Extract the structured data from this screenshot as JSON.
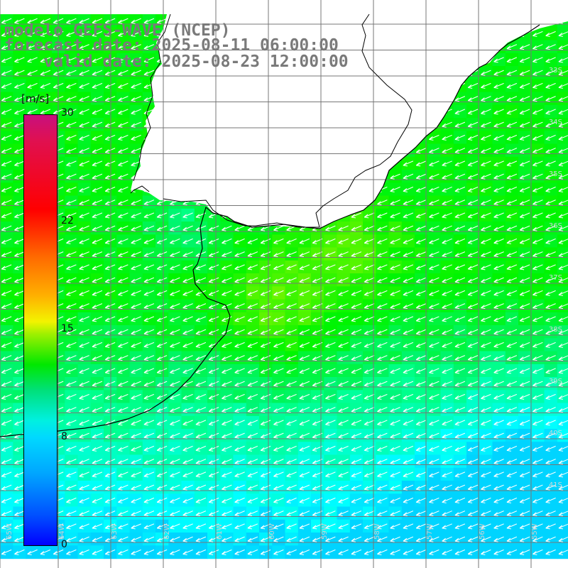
{
  "header": {
    "line1": "modelo GEFS-WAVE (NCEP)",
    "line2": "forecast date: 2025-08-11 06:00:00",
    "line3": "    valid date: 2025-08-23 12:00:00"
  },
  "colorbar": {
    "unit": "[m/s]",
    "ticks": [
      "30",
      "22",
      "15",
      "8",
      "0"
    ],
    "min": 0,
    "max": 30
  },
  "colors": {
    "land": "#ffffff",
    "grid": "#777777",
    "coast": "#000000",
    "arrows": "#ffffff"
  },
  "axes": {
    "lon_labels": [
      "65W",
      "64W",
      "63W",
      "62W",
      "61W",
      "60W",
      "59W",
      "58W",
      "57W",
      "56W",
      "55W"
    ],
    "lat_labels": [
      "33S",
      "34S",
      "35S",
      "36S",
      "37S",
      "38S",
      "39S",
      "40S",
      "41S"
    ]
  },
  "field": {
    "variable": "wind speed",
    "wind_direction": "from east-northeast"
  }
}
